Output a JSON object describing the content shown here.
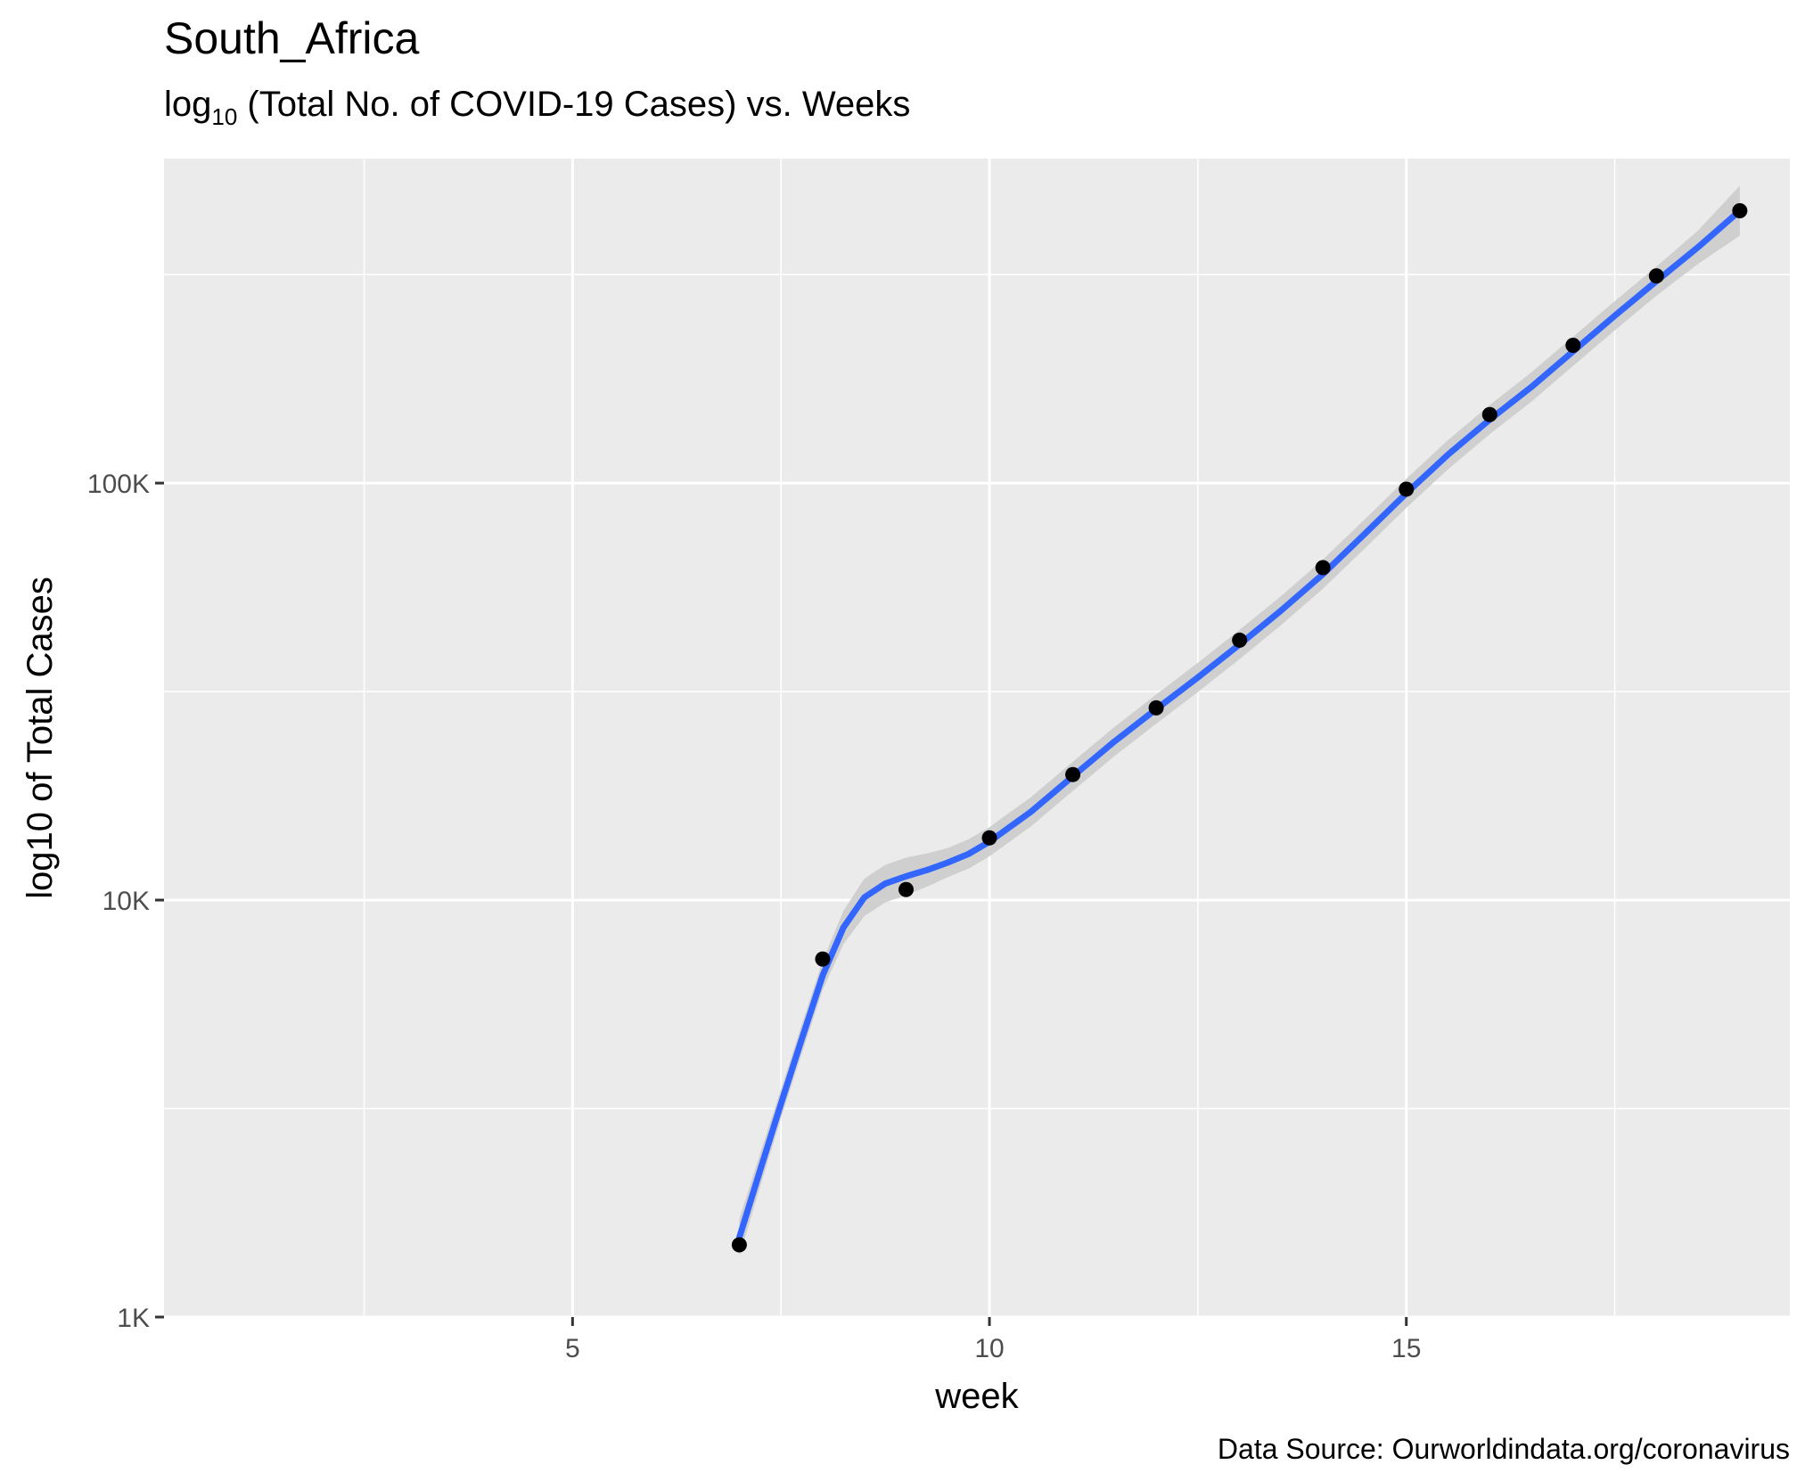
{
  "chart_data": {
    "type": "line",
    "title": "South_Africa",
    "subtitle": {
      "prefix": "log",
      "subscript": "10",
      "rest": " (Total No. of COVID-19 Cases) vs. Weeks"
    },
    "xlabel": "week",
    "ylabel": "log10 of Total Cases",
    "caption": "Data Source: Ourworldindata.org/coronavirus",
    "x_scale": "linear",
    "y_scale": "log10",
    "xlim": [
      0.1,
      19.6
    ],
    "ylim": [
      1000,
      600000
    ],
    "x_ticks": [
      {
        "value": 5,
        "label": "5"
      },
      {
        "value": 10,
        "label": "10"
      },
      {
        "value": 15,
        "label": "15"
      }
    ],
    "x_minor_gridlines": [
      2.5,
      7.5,
      12.5,
      17.5
    ],
    "y_ticks": [
      {
        "value": 1000,
        "label": "1K"
      },
      {
        "value": 10000,
        "label": "10K"
      },
      {
        "value": 100000,
        "label": "100K"
      }
    ],
    "y_minor_gridlines": [
      3162,
      31623,
      316228
    ],
    "grid": true,
    "colors": {
      "panel": "#EBEBEB",
      "grid": "#FFFFFF",
      "line": "#3366FF",
      "ribbon": "#CCCCCC",
      "point": "#000000"
    },
    "series": [
      {
        "type": "scatter",
        "x": [
          7,
          8,
          9,
          10,
          11,
          12,
          13,
          14,
          15,
          16,
          17,
          18,
          19
        ],
        "y": [
          1490,
          7220,
          10600,
          14100,
          20000,
          28900,
          42000,
          62700,
          96700,
          146000,
          214000,
          314000,
          450000
        ]
      },
      {
        "type": "smooth",
        "x": [
          7,
          7.25,
          7.5,
          7.75,
          8,
          8.25,
          8.5,
          8.75,
          9,
          9.25,
          9.5,
          9.75,
          10,
          10.5,
          11,
          11.5,
          12,
          12.5,
          13,
          13.5,
          14,
          14.5,
          15,
          15.5,
          16,
          16.5,
          17,
          17.5,
          18,
          18.5,
          19
        ],
        "y": [
          1550,
          2250,
          3250,
          4650,
          6600,
          8600,
          10150,
          10950,
          11400,
          11800,
          12300,
          12900,
          13800,
          16300,
          19800,
          24000,
          28700,
          34200,
          41000,
          49500,
          60500,
          75500,
          94500,
          117000,
          142000,
          170000,
          207000,
          252000,
          305000,
          368000,
          450000
        ],
        "ribbon_halfwidth_log10": [
          0.045,
          0.04,
          0.035,
          0.035,
          0.035,
          0.04,
          0.045,
          0.045,
          0.045,
          0.04,
          0.035,
          0.035,
          0.035,
          0.035,
          0.035,
          0.035,
          0.035,
          0.035,
          0.035,
          0.035,
          0.035,
          0.035,
          0.035,
          0.035,
          0.035,
          0.035,
          0.035,
          0.035,
          0.035,
          0.04,
          0.06
        ]
      }
    ]
  }
}
